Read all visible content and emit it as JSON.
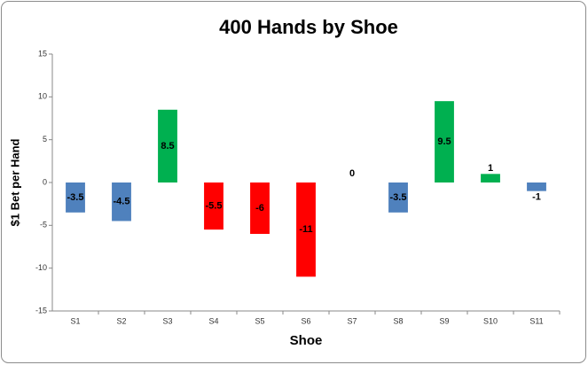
{
  "chart_data": {
    "type": "bar",
    "title": "400 Hands by Shoe",
    "x_label": "Shoe",
    "y_label": "$1 Bet per Hand",
    "categories": [
      "S1",
      "S2",
      "S3",
      "S4",
      "S5",
      "S6",
      "S7",
      "S8",
      "S9",
      "S10",
      "S11"
    ],
    "values": [
      -3.5,
      -4.5,
      8.5,
      -5.5,
      -6,
      -11,
      0,
      -3.5,
      9.5,
      1,
      -1
    ],
    "colors": [
      "#4f81bd",
      "#4f81bd",
      "#00b050",
      "#ff0000",
      "#ff0000",
      "#ff0000",
      "#4f81bd",
      "#4f81bd",
      "#00b050",
      "#00b050",
      "#4f81bd"
    ],
    "ylim": [
      -15,
      15
    ],
    "yticks": [
      -15,
      -10,
      -5,
      0,
      5,
      10,
      15
    ],
    "grid": false
  }
}
